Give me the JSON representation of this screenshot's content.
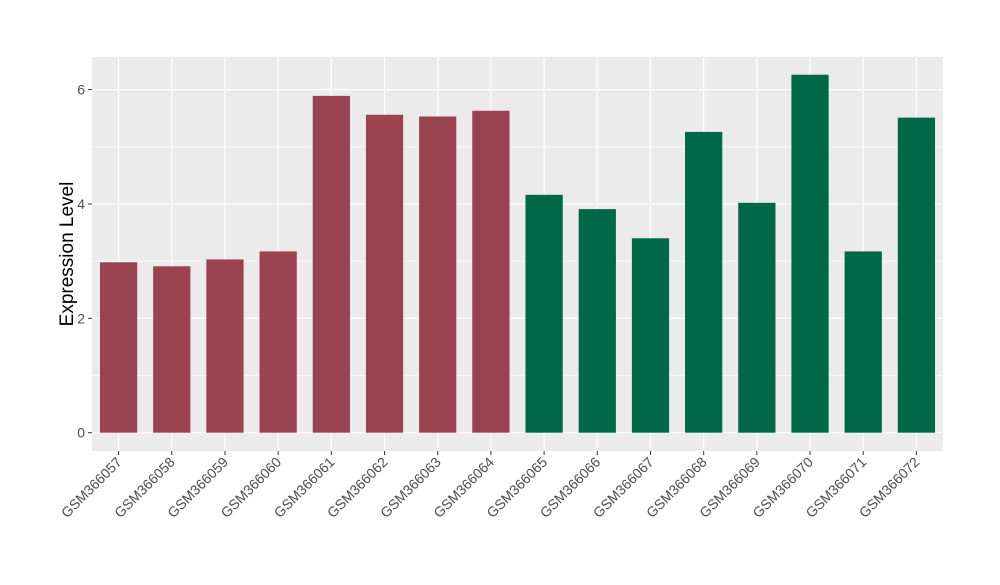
{
  "chart_data": {
    "type": "bar",
    "title": "",
    "xlabel": "",
    "ylabel": "Expression Level",
    "categories": [
      "GSM366057",
      "GSM366058",
      "GSM366059",
      "GSM366060",
      "GSM366061",
      "GSM366062",
      "GSM366063",
      "GSM366064",
      "GSM366065",
      "GSM366066",
      "GSM366067",
      "GSM366068",
      "GSM366069",
      "GSM366070",
      "GSM366071",
      "GSM366072"
    ],
    "values": [
      2.98,
      2.91,
      3.03,
      3.17,
      5.89,
      5.56,
      5.53,
      5.63,
      4.16,
      3.91,
      3.4,
      5.26,
      4.02,
      6.26,
      3.17,
      5.51
    ],
    "bar_colors": [
      "#9b4250",
      "#9b4250",
      "#9b4250",
      "#9b4250",
      "#9b4250",
      "#9b4250",
      "#9b4250",
      "#9b4250",
      "#006747",
      "#006747",
      "#006747",
      "#006747",
      "#006747",
      "#006747",
      "#006747",
      "#006747"
    ],
    "yticks": [
      0,
      2,
      4,
      6
    ],
    "ylim": [
      -0.32,
      6.57
    ],
    "grid": true,
    "panel_background": "#ebebeb",
    "gridline_color": "#ffffff",
    "legend": "none"
  }
}
